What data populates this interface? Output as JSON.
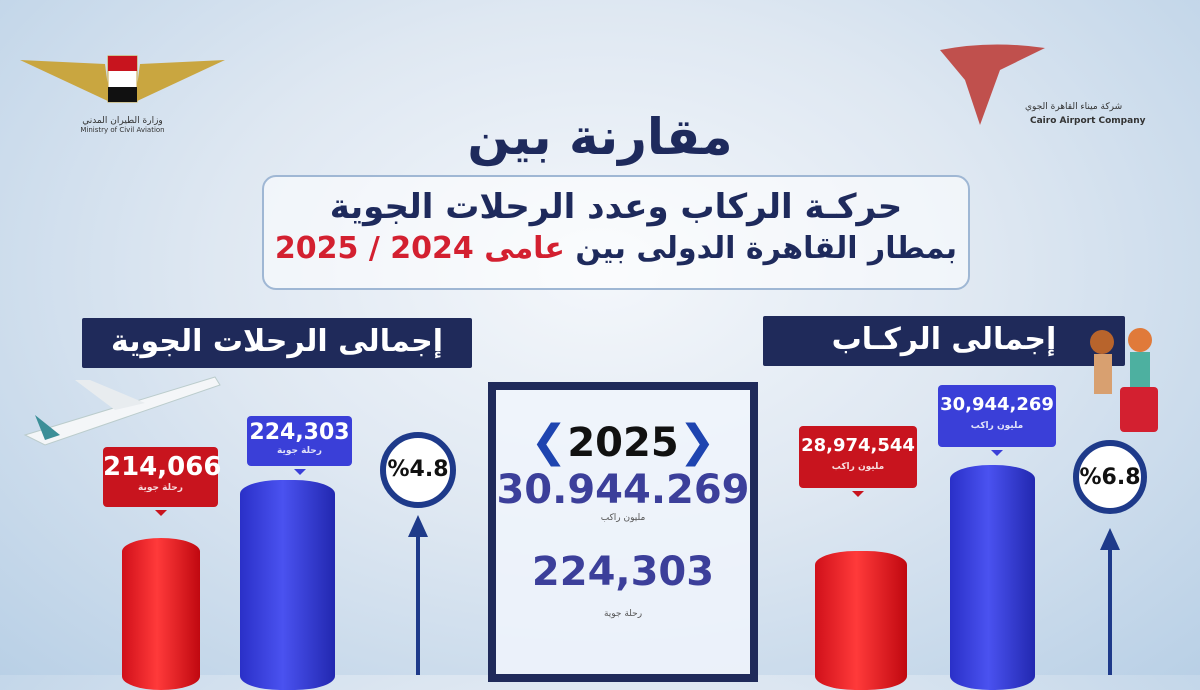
{
  "header": {
    "title": "مقارنة بين",
    "subtitle_line1": "حركـة الركاب وعدد الرحلات الجوية",
    "subtitle_line2_prefix": "بمطار القاهرة الدولى بين",
    "subtitle_line2_highlight": "عامى 2024 / 2025"
  },
  "logos": {
    "left": "وزارة الطيران المدني",
    "left_en": "Ministry of Civil Aviation",
    "right": "شركة ميناء القاهرة الجوي",
    "right_en": "Cairo Airport Company"
  },
  "flights": {
    "banner": "إجمالى الرحلات الجوية",
    "v2024": "214,066",
    "v2025": "224,303",
    "unit": "رحلة جوية",
    "growth": "%4.8"
  },
  "passengers": {
    "banner": "إجمالى الركـاب",
    "v2024": "28,974,544",
    "v2025": "30,944,269",
    "unit": "مليون راكب",
    "growth": "%6.8"
  },
  "center": {
    "year": "2025",
    "passengers": "30.944.269",
    "passengers_unit": "مليون راكب",
    "flights": "224,303",
    "flights_unit": "رحلة جوية"
  },
  "colors": {
    "y2024": "#c8141e",
    "y2025": "#3a3fd8",
    "navy": "#1f2a5a"
  },
  "chart_data": [
    {
      "type": "bar",
      "title": "إجمالى الرحلات الجوية",
      "categories": [
        "2024",
        "2025"
      ],
      "values": [
        214066,
        224303
      ],
      "growth_percent": 4.8
    },
    {
      "type": "bar",
      "title": "إجمالى الركـاب",
      "categories": [
        "2024",
        "2025"
      ],
      "values": [
        28974544,
        30944269
      ],
      "growth_percent": 6.8
    }
  ]
}
